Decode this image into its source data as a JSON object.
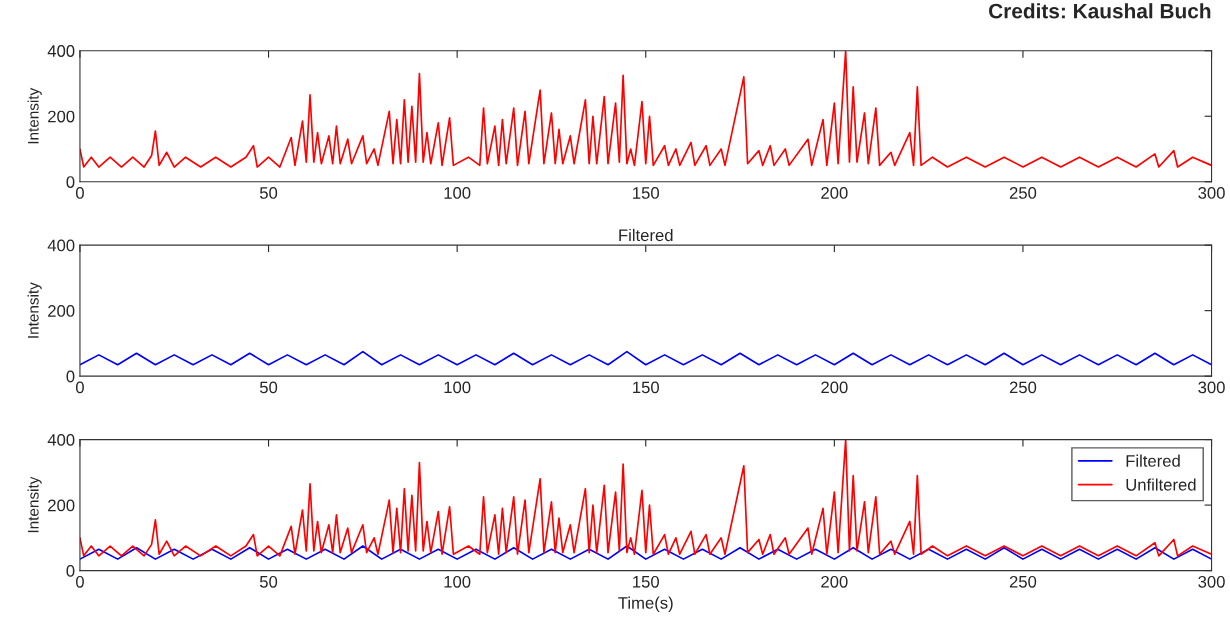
{
  "chart_data": [
    {
      "type": "line",
      "ylabel": "Intensity",
      "annotations": [
        "Credits: Kaushal Buch"
      ],
      "xlim": [
        0,
        300
      ],
      "ylim": [
        0,
        400
      ],
      "xticks": [
        0,
        50,
        100,
        150,
        200,
        250,
        300
      ],
      "yticks": [
        0,
        200,
        400
      ],
      "grid": false,
      "legend": false,
      "series": [
        {
          "color": "#ff0000",
          "x": [
            0,
            1,
            3,
            5,
            8,
            11,
            14,
            17,
            19,
            20,
            21,
            23,
            25,
            28,
            32,
            36,
            40,
            44,
            46,
            47,
            50,
            53,
            56,
            57,
            59,
            60,
            61,
            62,
            63,
            64,
            66,
            67,
            68,
            69,
            71,
            72,
            75,
            76,
            78,
            79,
            82,
            83,
            84,
            85,
            86,
            87,
            88,
            89,
            90,
            91,
            92,
            93,
            95,
            96,
            98,
            99,
            103,
            106,
            107,
            108,
            110,
            111,
            112,
            113,
            115,
            116,
            118,
            119,
            122,
            123,
            125,
            126,
            127,
            128,
            130,
            131,
            134,
            135,
            136,
            137,
            139,
            140,
            142,
            143,
            144,
            145,
            146,
            147,
            149,
            150,
            151,
            152,
            155,
            156,
            158,
            159,
            162,
            163,
            166,
            167,
            170,
            171,
            176,
            177,
            180,
            181,
            183,
            184,
            187,
            188,
            193,
            194,
            197,
            198,
            200,
            201,
            203,
            204,
            205,
            206,
            208,
            209,
            211,
            212,
            215,
            216,
            220,
            221,
            222,
            223,
            226,
            230,
            235,
            240,
            245,
            250,
            255,
            260,
            265,
            270,
            275,
            280,
            285,
            286,
            290,
            291,
            295,
            300
          ],
          "values": [
            100,
            45,
            75,
            45,
            75,
            45,
            75,
            45,
            80,
            155,
            50,
            90,
            45,
            75,
            45,
            75,
            45,
            75,
            110,
            45,
            75,
            45,
            135,
            50,
            185,
            60,
            265,
            60,
            150,
            55,
            140,
            55,
            170,
            55,
            130,
            55,
            140,
            55,
            100,
            50,
            215,
            55,
            190,
            55,
            250,
            60,
            230,
            60,
            330,
            60,
            150,
            55,
            180,
            50,
            195,
            50,
            75,
            50,
            225,
            55,
            170,
            50,
            190,
            55,
            225,
            50,
            215,
            55,
            280,
            55,
            210,
            55,
            160,
            55,
            140,
            55,
            250,
            55,
            200,
            55,
            260,
            55,
            240,
            60,
            325,
            55,
            100,
            50,
            245,
            55,
            200,
            50,
            110,
            50,
            100,
            50,
            120,
            50,
            110,
            50,
            100,
            50,
            320,
            55,
            95,
            50,
            110,
            50,
            100,
            50,
            130,
            50,
            190,
            50,
            240,
            55,
            400,
            60,
            290,
            60,
            210,
            55,
            225,
            50,
            90,
            50,
            150,
            50,
            290,
            50,
            75,
            45,
            75,
            45,
            75,
            45,
            75,
            45,
            75,
            45,
            75,
            45,
            85,
            45,
            95,
            45,
            75,
            50
          ]
        }
      ]
    },
    {
      "type": "line",
      "title": "Filtered",
      "ylabel": "Intensity",
      "xlim": [
        0,
        300
      ],
      "ylim": [
        0,
        400
      ],
      "xticks": [
        0,
        50,
        100,
        150,
        200,
        250,
        300
      ],
      "yticks": [
        0,
        200,
        400
      ],
      "grid": false,
      "legend": false,
      "series": [
        {
          "color": "#0000ff",
          "x": [
            0,
            5,
            10,
            15,
            20,
            25,
            30,
            35,
            40,
            45,
            50,
            55,
            60,
            65,
            70,
            75,
            80,
            85,
            90,
            95,
            100,
            105,
            110,
            115,
            120,
            125,
            130,
            135,
            140,
            145,
            150,
            155,
            160,
            165,
            170,
            175,
            180,
            185,
            190,
            195,
            200,
            205,
            210,
            215,
            220,
            225,
            230,
            235,
            240,
            245,
            250,
            255,
            260,
            265,
            270,
            275,
            280,
            285,
            290,
            295,
            300
          ],
          "values": [
            35,
            65,
            35,
            70,
            35,
            65,
            35,
            65,
            35,
            70,
            35,
            65,
            35,
            65,
            35,
            75,
            35,
            65,
            35,
            65,
            35,
            65,
            35,
            70,
            35,
            65,
            35,
            65,
            35,
            75,
            35,
            65,
            35,
            65,
            35,
            70,
            35,
            65,
            35,
            65,
            35,
            70,
            35,
            65,
            35,
            65,
            35,
            65,
            35,
            70,
            35,
            65,
            35,
            65,
            35,
            65,
            35,
            70,
            35,
            65,
            35
          ]
        }
      ]
    },
    {
      "type": "line",
      "xlabel": "Time(s)",
      "ylabel": "Intensity",
      "xlim": [
        0,
        300
      ],
      "ylim": [
        0,
        400
      ],
      "xticks": [
        0,
        50,
        100,
        150,
        200,
        250,
        300
      ],
      "yticks": [
        0,
        200,
        400
      ],
      "grid": false,
      "legend": "top right",
      "series": [
        {
          "name": "Filtered",
          "color": "#0000ff",
          "x": [
            0,
            5,
            10,
            15,
            20,
            25,
            30,
            35,
            40,
            45,
            50,
            55,
            60,
            65,
            70,
            75,
            80,
            85,
            90,
            95,
            100,
            105,
            110,
            115,
            120,
            125,
            130,
            135,
            140,
            145,
            150,
            155,
            160,
            165,
            170,
            175,
            180,
            185,
            190,
            195,
            200,
            205,
            210,
            215,
            220,
            225,
            230,
            235,
            240,
            245,
            250,
            255,
            260,
            265,
            270,
            275,
            280,
            285,
            290,
            295,
            300
          ],
          "values": [
            35,
            65,
            35,
            70,
            35,
            65,
            35,
            65,
            35,
            70,
            35,
            65,
            35,
            65,
            35,
            75,
            35,
            65,
            35,
            65,
            35,
            65,
            35,
            70,
            35,
            65,
            35,
            65,
            35,
            75,
            35,
            65,
            35,
            65,
            35,
            70,
            35,
            65,
            35,
            65,
            35,
            70,
            35,
            65,
            35,
            65,
            35,
            65,
            35,
            70,
            35,
            65,
            35,
            65,
            35,
            65,
            35,
            70,
            35,
            65,
            35
          ]
        },
        {
          "name": "Unfiltered",
          "color": "#ff0000",
          "x": [
            0,
            1,
            3,
            5,
            8,
            11,
            14,
            17,
            19,
            20,
            21,
            23,
            25,
            28,
            32,
            36,
            40,
            44,
            46,
            47,
            50,
            53,
            56,
            57,
            59,
            60,
            61,
            62,
            63,
            64,
            66,
            67,
            68,
            69,
            71,
            72,
            75,
            76,
            78,
            79,
            82,
            83,
            84,
            85,
            86,
            87,
            88,
            89,
            90,
            91,
            92,
            93,
            95,
            96,
            98,
            99,
            103,
            106,
            107,
            108,
            110,
            111,
            112,
            113,
            115,
            116,
            118,
            119,
            122,
            123,
            125,
            126,
            127,
            128,
            130,
            131,
            134,
            135,
            136,
            137,
            139,
            140,
            142,
            143,
            144,
            145,
            146,
            147,
            149,
            150,
            151,
            152,
            155,
            156,
            158,
            159,
            162,
            163,
            166,
            167,
            170,
            171,
            176,
            177,
            180,
            181,
            183,
            184,
            187,
            188,
            193,
            194,
            197,
            198,
            200,
            201,
            203,
            204,
            205,
            206,
            208,
            209,
            211,
            212,
            215,
            216,
            220,
            221,
            222,
            223,
            226,
            230,
            235,
            240,
            245,
            250,
            255,
            260,
            265,
            270,
            275,
            280,
            285,
            286,
            290,
            291,
            295,
            300
          ],
          "values": [
            100,
            45,
            75,
            45,
            75,
            45,
            75,
            45,
            80,
            155,
            50,
            90,
            45,
            75,
            45,
            75,
            45,
            75,
            110,
            45,
            75,
            45,
            135,
            50,
            185,
            60,
            265,
            60,
            150,
            55,
            140,
            55,
            170,
            55,
            130,
            55,
            140,
            55,
            100,
            50,
            215,
            55,
            190,
            55,
            250,
            60,
            230,
            60,
            330,
            60,
            150,
            55,
            180,
            50,
            195,
            50,
            75,
            50,
            225,
            55,
            170,
            50,
            190,
            55,
            225,
            50,
            215,
            55,
            280,
            55,
            210,
            55,
            160,
            55,
            140,
            55,
            250,
            55,
            200,
            55,
            260,
            55,
            240,
            60,
            325,
            55,
            100,
            50,
            245,
            55,
            200,
            50,
            110,
            50,
            100,
            50,
            120,
            50,
            110,
            50,
            100,
            50,
            320,
            55,
            95,
            50,
            110,
            50,
            100,
            50,
            130,
            50,
            190,
            50,
            240,
            55,
            400,
            60,
            290,
            60,
            210,
            55,
            225,
            50,
            90,
            50,
            150,
            50,
            290,
            50,
            75,
            45,
            75,
            45,
            75,
            45,
            75,
            45,
            75,
            45,
            75,
            45,
            85,
            45,
            95,
            45,
            75,
            50
          ]
        }
      ]
    }
  ]
}
